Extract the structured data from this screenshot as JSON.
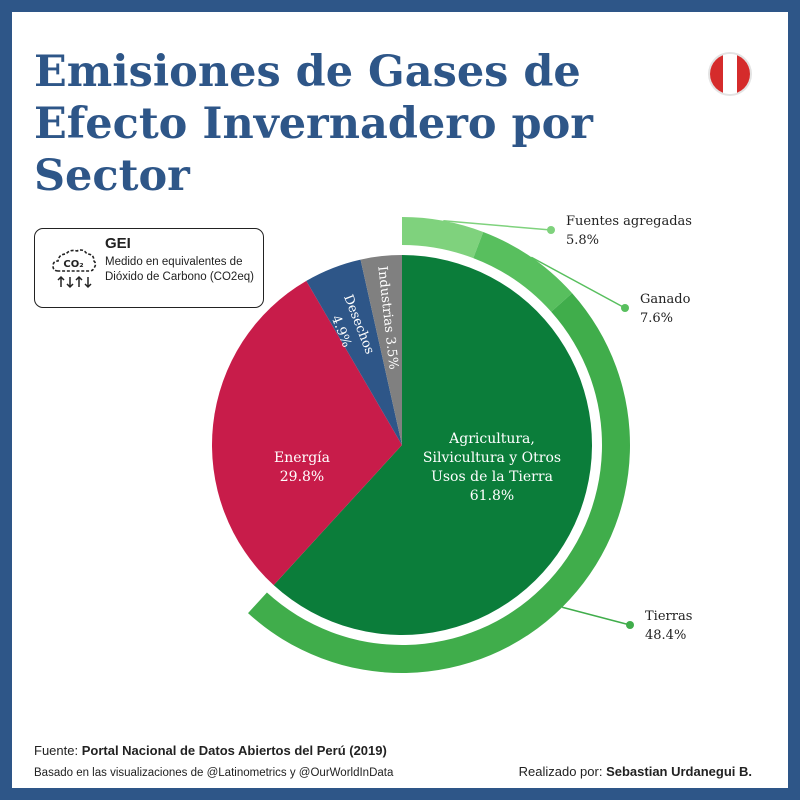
{
  "title": "Emisiones de Gases de Efecto Invernadero por Sector",
  "gei": {
    "title": "GEI",
    "description": "Medido en equivalentes de Dióxido de Carbono (CO2eq)",
    "icon_text": "CO₂"
  },
  "colors": {
    "background": "#2e5688",
    "title": "#2e5688",
    "agriculture": "#0b7d3a",
    "energy": "#c81c4a",
    "waste": "#2e5688",
    "industry": "#808080",
    "sub_tierras": "#40ad4b",
    "sub_ganado": "#58bf5e",
    "sub_fuentes": "#7fd27d",
    "flag_red": "#d52b2b"
  },
  "chart_data": {
    "type": "pie",
    "title": "Emisiones de Gases de Efecto Invernadero por Sector",
    "slices": [
      {
        "label": "Agricultura, Silvicultura y Otros Usos de la Tierra",
        "value": 61.8,
        "display": "61.8%",
        "color": "#0b7d3a"
      },
      {
        "label": "Energía",
        "value": 29.8,
        "display": "29.8%",
        "color": "#c81c4a"
      },
      {
        "label": "Desechos",
        "value": 4.9,
        "display": "4.9%",
        "color": "#2e5688"
      },
      {
        "label": "Industrias",
        "value": 3.5,
        "display": "3.5%",
        "color": "#808080"
      }
    ],
    "sub_breakdown": {
      "parent": "Agricultura, Silvicultura y Otros Usos de la Tierra",
      "items": [
        {
          "label": "Fuentes agregadas",
          "value": 5.8,
          "display": "5.8%",
          "color": "#7fd27d"
        },
        {
          "label": "Ganado",
          "value": 7.6,
          "display": "7.6%",
          "color": "#58bf5e"
        },
        {
          "label": "Tierras",
          "value": 48.4,
          "display": "48.4%",
          "color": "#40ad4b"
        }
      ]
    }
  },
  "footer": {
    "source_label": "Fuente:",
    "source_name": "Portal Nacional de Datos Abiertos del Perú (2019)",
    "based_on": "Basado en las visualizaciones de @Latinometrics y @OurWorldInData",
    "credit_label": "Realizado por:",
    "credit_name": "Sebastian Urdanegui B."
  }
}
